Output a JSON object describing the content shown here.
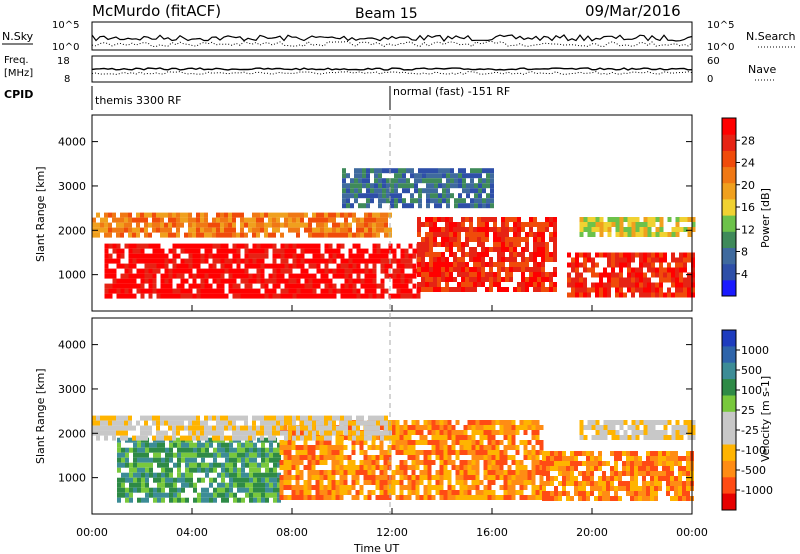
{
  "header": {
    "station": "McMurdo (fitACF)",
    "beam": "Beam 15",
    "date": "09/Mar/2016"
  },
  "params": {
    "nsky_label": "N.Sky",
    "nsky_ticks": [
      "10^5",
      "10^0"
    ],
    "nsearch_label": "N.Search",
    "nsearch_ticks": [
      "10^5",
      "10^0"
    ],
    "freq_label_1": "Freq.",
    "freq_label_2": "[MHz]",
    "freq_ticks": [
      "18",
      "8"
    ],
    "nave_label": "Nave",
    "nave_ticks": [
      "60",
      "0"
    ],
    "cpid_label": "CPID",
    "cpid_1": "themis 3300 RF",
    "cpid_2": "normal (fast) -151 RF"
  },
  "colors": {
    "power": [
      "#1a1aff",
      "#2e4fa8",
      "#3f6a9e",
      "#3f8a5a",
      "#6cc24a",
      "#f0d232",
      "#f0a01e",
      "#f07814",
      "#f04b0a",
      "#e62314",
      "#ff0000"
    ],
    "velocity": [
      "#e60000",
      "#ff4b14",
      "#ff8c14",
      "#ffb400",
      "#c8c8c8",
      "#c8c8c8",
      "#78c83c",
      "#2e8a46",
      "#3c8c96",
      "#2e64aa",
      "#1e3cbe"
    ]
  },
  "chart_data": [
    {
      "type": "heatmap",
      "title": "Power",
      "xlabel": "",
      "ylabel": "Slant Range [km]",
      "xlim": [
        "00:00",
        "24:00"
      ],
      "ylim": [
        180,
        4600
      ],
      "x_ticks": [
        "00:00",
        "04:00",
        "08:00",
        "12:00",
        "16:00",
        "20:00",
        "00:00"
      ],
      "y_ticks": [
        1000,
        2000,
        3000,
        4000
      ],
      "colorbar": {
        "label": "Power [dB]",
        "ticks": [
          4,
          8,
          12,
          16,
          20,
          24,
          28
        ]
      },
      "bands": [
        {
          "from_hour": 0.5,
          "to_hour": 13.0,
          "range_km": [
            500,
            1700
          ],
          "power_db": 28
        },
        {
          "from_hour": 13.0,
          "to_hour": 18.5,
          "range_km": [
            700,
            2300
          ],
          "power_db": 26
        },
        {
          "from_hour": 19.0,
          "to_hour": 24.0,
          "range_km": [
            500,
            1500
          ],
          "power_db": 26
        },
        {
          "from_hour": 0.0,
          "to_hour": 12.0,
          "range_km": [
            1900,
            2400
          ],
          "power_db": 20
        },
        {
          "from_hour": 19.5,
          "to_hour": 24.0,
          "range_km": [
            1900,
            2300
          ],
          "power_db": 16
        },
        {
          "from_hour": 10.0,
          "to_hour": 16.0,
          "range_km": [
            2600,
            3400
          ],
          "power_db": 6
        }
      ]
    },
    {
      "type": "heatmap",
      "title": "Velocity",
      "xlabel": "Time UT",
      "ylabel": "Slant Range [km]",
      "xlim": [
        "00:00",
        "24:00"
      ],
      "ylim": [
        180,
        4600
      ],
      "x_ticks": [
        "00:00",
        "04:00",
        "08:00",
        "12:00",
        "16:00",
        "20:00",
        "00:00"
      ],
      "y_ticks": [
        1000,
        2000,
        3000,
        4000
      ],
      "colorbar": {
        "label": "Velocity [m s-1]",
        "ticks": [
          1000,
          500,
          100,
          25,
          -25,
          -100,
          -500,
          -1000
        ]
      },
      "bands": [
        {
          "from_hour": 1.0,
          "to_hour": 7.5,
          "range_km": [
            500,
            1900
          ],
          "velocity_ms": 150
        },
        {
          "from_hour": 7.5,
          "to_hour": 18.0,
          "range_km": [
            500,
            2300
          ],
          "velocity_ms": -300
        },
        {
          "from_hour": 18.0,
          "to_hour": 24.0,
          "range_km": [
            500,
            1600
          ],
          "velocity_ms": -150
        },
        {
          "from_hour": 0.0,
          "to_hour": 12.0,
          "range_km": [
            1900,
            2400
          ],
          "velocity_ms": 0
        },
        {
          "from_hour": 19.5,
          "to_hour": 24.0,
          "range_km": [
            1900,
            2300
          ],
          "velocity_ms": 0
        }
      ]
    }
  ]
}
